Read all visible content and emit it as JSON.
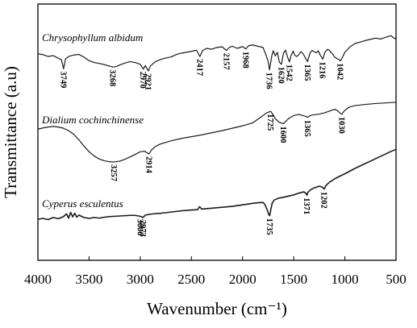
{
  "chart_data": {
    "type": "line",
    "xlabel": "Wavenumber (cm⁻¹)",
    "ylabel": "Transmittance (a.u)",
    "xlim": [
      4000,
      500
    ],
    "x_reversed": true,
    "x_ticks": [
      4000,
      3500,
      3000,
      2500,
      2000,
      1500,
      1000,
      500
    ],
    "y_ticks": [],
    "grid": false,
    "legend": "none",
    "line_color": "#1a1a1a",
    "series": [
      {
        "name": "Chrysophyllum albidum",
        "points": [
          [
            4000,
            83.5
          ],
          [
            3950,
            83.2
          ],
          [
            3900,
            82.6
          ],
          [
            3850,
            82.9
          ],
          [
            3800,
            82.0
          ],
          [
            3770,
            81.5
          ],
          [
            3749,
            78.5
          ],
          [
            3730,
            81.8
          ],
          [
            3700,
            82.6
          ],
          [
            3650,
            83.1
          ],
          [
            3600,
            83.3
          ],
          [
            3550,
            82.4
          ],
          [
            3500,
            81.2
          ],
          [
            3450,
            80.6
          ],
          [
            3400,
            80.3
          ],
          [
            3350,
            79.9
          ],
          [
            3300,
            79.4
          ],
          [
            3268,
            79.1
          ],
          [
            3230,
            79.3
          ],
          [
            3200,
            79.8
          ],
          [
            3150,
            80.4
          ],
          [
            3100,
            80.9
          ],
          [
            3050,
            80.6
          ],
          [
            3000,
            80.0
          ],
          [
            2970,
            78.4
          ],
          [
            2950,
            79.6
          ],
          [
            2921,
            77.8
          ],
          [
            2900,
            79.5
          ],
          [
            2850,
            80.9
          ],
          [
            2800,
            81.6
          ],
          [
            2750,
            82.1
          ],
          [
            2700,
            82.4
          ],
          [
            2650,
            83.2
          ],
          [
            2600,
            83.7
          ],
          [
            2550,
            84.0
          ],
          [
            2500,
            84.3
          ],
          [
            2450,
            84.7
          ],
          [
            2417,
            82.6
          ],
          [
            2390,
            84.6
          ],
          [
            2350,
            85.3
          ],
          [
            2300,
            85.0
          ],
          [
            2250,
            85.6
          ],
          [
            2200,
            85.8
          ],
          [
            2157,
            84.6
          ],
          [
            2130,
            85.6
          ],
          [
            2100,
            86.0
          ],
          [
            2050,
            85.3
          ],
          [
            2000,
            85.9
          ],
          [
            1968,
            85.1
          ],
          [
            1940,
            86.2
          ],
          [
            1900,
            86.4
          ],
          [
            1850,
            86.0
          ],
          [
            1800,
            85.6
          ],
          [
            1770,
            83.0
          ],
          [
            1750,
            81.0
          ],
          [
            1736,
            78.2
          ],
          [
            1715,
            82.7
          ],
          [
            1700,
            84.5
          ],
          [
            1680,
            82.8
          ],
          [
            1660,
            84.0
          ],
          [
            1640,
            80.7
          ],
          [
            1620,
            80.0
          ],
          [
            1600,
            83.7
          ],
          [
            1580,
            84.7
          ],
          [
            1560,
            82.4
          ],
          [
            1542,
            80.8
          ],
          [
            1525,
            83.0
          ],
          [
            1505,
            84.4
          ],
          [
            1490,
            83.0
          ],
          [
            1470,
            82.6
          ],
          [
            1450,
            83.2
          ],
          [
            1430,
            84.2
          ],
          [
            1410,
            83.6
          ],
          [
            1390,
            82.4
          ],
          [
            1365,
            80.9
          ],
          [
            1340,
            83.8
          ],
          [
            1320,
            84.6
          ],
          [
            1300,
            84.2
          ],
          [
            1280,
            83.8
          ],
          [
            1260,
            84.5
          ],
          [
            1240,
            83.0
          ],
          [
            1216,
            81.7
          ],
          [
            1195,
            84.0
          ],
          [
            1170,
            85.0
          ],
          [
            1150,
            84.6
          ],
          [
            1120,
            83.4
          ],
          [
            1100,
            82.4
          ],
          [
            1080,
            82.0
          ],
          [
            1060,
            81.6
          ],
          [
            1042,
            81.2
          ],
          [
            1020,
            82.6
          ],
          [
            1000,
            84.0
          ],
          [
            950,
            85.8
          ],
          [
            900,
            86.9
          ],
          [
            850,
            87.4
          ],
          [
            800,
            87.9
          ],
          [
            750,
            88.3
          ],
          [
            700,
            88.7
          ],
          [
            650,
            88.4
          ],
          [
            600,
            89.0
          ],
          [
            550,
            89.5
          ],
          [
            520,
            88.7
          ],
          [
            500,
            88.3
          ]
        ]
      },
      {
        "name": "Dialium cochinchinense",
        "points": [
          [
            4000,
            58.5
          ],
          [
            3950,
            58.9
          ],
          [
            3900,
            59.2
          ],
          [
            3850,
            59.4
          ],
          [
            3800,
            59.2
          ],
          [
            3750,
            58.8
          ],
          [
            3700,
            58.0
          ],
          [
            3650,
            56.8
          ],
          [
            3600,
            55.0
          ],
          [
            3550,
            52.9
          ],
          [
            3500,
            51.0
          ],
          [
            3450,
            49.6
          ],
          [
            3400,
            48.6
          ],
          [
            3350,
            48.0
          ],
          [
            3300,
            47.7
          ],
          [
            3257,
            47.6
          ],
          [
            3200,
            47.9
          ],
          [
            3150,
            48.5
          ],
          [
            3100,
            49.3
          ],
          [
            3050,
            50.1
          ],
          [
            3000,
            51.0
          ],
          [
            2960,
            51.2
          ],
          [
            2930,
            50.6
          ],
          [
            2914,
            50.3
          ],
          [
            2890,
            51.6
          ],
          [
            2850,
            52.8
          ],
          [
            2800,
            53.6
          ],
          [
            2700,
            54.6
          ],
          [
            2600,
            55.4
          ],
          [
            2500,
            56.0
          ],
          [
            2400,
            56.6
          ],
          [
            2300,
            57.3
          ],
          [
            2200,
            58.0
          ],
          [
            2100,
            58.8
          ],
          [
            2000,
            59.6
          ],
          [
            1900,
            60.6
          ],
          [
            1850,
            61.8
          ],
          [
            1800,
            63.0
          ],
          [
            1770,
            63.8
          ],
          [
            1750,
            64.1
          ],
          [
            1725,
            64.4
          ],
          [
            1700,
            63.2
          ],
          [
            1680,
            62.0
          ],
          [
            1650,
            61.0
          ],
          [
            1620,
            60.5
          ],
          [
            1600,
            60.3
          ],
          [
            1575,
            61.2
          ],
          [
            1550,
            62.0
          ],
          [
            1500,
            63.0
          ],
          [
            1450,
            63.4
          ],
          [
            1400,
            62.9
          ],
          [
            1380,
            62.7
          ],
          [
            1365,
            62.4
          ],
          [
            1340,
            63.0
          ],
          [
            1300,
            63.3
          ],
          [
            1250,
            63.5
          ],
          [
            1200,
            63.9
          ],
          [
            1150,
            64.5
          ],
          [
            1100,
            65.1
          ],
          [
            1070,
            64.6
          ],
          [
            1050,
            63.9
          ],
          [
            1030,
            63.4
          ],
          [
            1010,
            64.4
          ],
          [
            980,
            65.3
          ],
          [
            950,
            65.9
          ],
          [
            900,
            66.3
          ],
          [
            800,
            66.7
          ],
          [
            700,
            67.0
          ],
          [
            600,
            67.2
          ],
          [
            500,
            67.4
          ]
        ]
      },
      {
        "name": "Cyperus esculentus",
        "points": [
          [
            4000,
            28.6
          ],
          [
            3950,
            28.9
          ],
          [
            3900,
            28.5
          ],
          [
            3850,
            29.2
          ],
          [
            3800,
            28.8
          ],
          [
            3750,
            29.5
          ],
          [
            3720,
            30.4
          ],
          [
            3700,
            29.0
          ],
          [
            3680,
            30.9
          ],
          [
            3660,
            29.4
          ],
          [
            3640,
            30.6
          ],
          [
            3620,
            29.3
          ],
          [
            3600,
            30.0
          ],
          [
            3550,
            29.2
          ],
          [
            3500,
            28.9
          ],
          [
            3450,
            29.2
          ],
          [
            3400,
            29.0
          ],
          [
            3350,
            29.3
          ],
          [
            3300,
            29.5
          ],
          [
            3250,
            29.6
          ],
          [
            3200,
            29.7
          ],
          [
            3150,
            29.8
          ],
          [
            3100,
            29.9
          ],
          [
            3050,
            29.9
          ],
          [
            3000,
            29.6
          ],
          [
            2973,
            29.2
          ],
          [
            2950,
            30.0
          ],
          [
            2900,
            30.3
          ],
          [
            2850,
            30.5
          ],
          [
            2800,
            30.6
          ],
          [
            2700,
            31.0
          ],
          [
            2600,
            31.4
          ],
          [
            2500,
            31.7
          ],
          [
            2440,
            31.8
          ],
          [
            2420,
            32.8
          ],
          [
            2400,
            32.0
          ],
          [
            2300,
            32.3
          ],
          [
            2200,
            32.6
          ],
          [
            2100,
            32.9
          ],
          [
            2000,
            33.4
          ],
          [
            1900,
            33.9
          ],
          [
            1850,
            34.1
          ],
          [
            1800,
            34.2
          ],
          [
            1780,
            33.4
          ],
          [
            1760,
            31.8
          ],
          [
            1745,
            30.3
          ],
          [
            1735,
            29.8
          ],
          [
            1725,
            31.6
          ],
          [
            1710,
            34.0
          ],
          [
            1690,
            35.0
          ],
          [
            1650,
            35.6
          ],
          [
            1600,
            35.9
          ],
          [
            1550,
            36.3
          ],
          [
            1500,
            36.7
          ],
          [
            1450,
            37.3
          ],
          [
            1400,
            37.7
          ],
          [
            1380,
            37.2
          ],
          [
            1371,
            36.6
          ],
          [
            1360,
            37.6
          ],
          [
            1330,
            38.5
          ],
          [
            1300,
            39.0
          ],
          [
            1250,
            39.6
          ],
          [
            1220,
            39.3
          ],
          [
            1202,
            38.6
          ],
          [
            1185,
            39.8
          ],
          [
            1150,
            40.9
          ],
          [
            1100,
            42.0
          ],
          [
            1050,
            42.9
          ],
          [
            1000,
            43.7
          ],
          [
            950,
            44.6
          ],
          [
            900,
            45.5
          ],
          [
            850,
            46.3
          ],
          [
            800,
            47.1
          ],
          [
            750,
            47.9
          ],
          [
            700,
            48.7
          ],
          [
            650,
            49.5
          ],
          [
            600,
            50.3
          ],
          [
            550,
            51.1
          ],
          [
            500,
            51.8
          ]
        ]
      }
    ],
    "peak_labels": [
      {
        "text": "3749",
        "series": 0,
        "x": 3749,
        "y": 78.5
      },
      {
        "text": "3268",
        "series": 0,
        "x": 3268,
        "y": 79.1
      },
      {
        "text": "2970",
        "series": 0,
        "x": 2970,
        "y": 78.4
      },
      {
        "text": "2921",
        "series": 0,
        "x": 2921,
        "y": 77.8
      },
      {
        "text": "2417",
        "series": 0,
        "x": 2417,
        "y": 82.6
      },
      {
        "text": "2157",
        "series": 0,
        "x": 2157,
        "y": 84.6
      },
      {
        "text": "1968",
        "series": 0,
        "x": 1968,
        "y": 85.1
      },
      {
        "text": "1736",
        "series": 0,
        "x": 1736,
        "y": 78.2
      },
      {
        "text": "1620",
        "series": 0,
        "x": 1620,
        "y": 80.0
      },
      {
        "text": "1542",
        "series": 0,
        "x": 1542,
        "y": 80.8
      },
      {
        "text": "1365",
        "series": 0,
        "x": 1365,
        "y": 80.9
      },
      {
        "text": "1216",
        "series": 0,
        "x": 1216,
        "y": 81.7
      },
      {
        "text": "1042",
        "series": 0,
        "x": 1042,
        "y": 81.2
      },
      {
        "text": "1725",
        "series": 1,
        "x": 1725,
        "y": 64.4
      },
      {
        "text": "1600",
        "series": 1,
        "x": 1600,
        "y": 60.3
      },
      {
        "text": "1365",
        "series": 1,
        "x": 1365,
        "y": 62.4
      },
      {
        "text": "1030",
        "series": 1,
        "x": 1030,
        "y": 63.4
      },
      {
        "text": "3257",
        "series": 1,
        "x": 3257,
        "y": 47.6
      },
      {
        "text": "2914",
        "series": 1,
        "x": 2914,
        "y": 50.3
      },
      {
        "text": "3000",
        "series": 2,
        "x": 3000,
        "y": 29.6
      },
      {
        "text": "2973",
        "series": 2,
        "x": 2973,
        "y": 29.2
      },
      {
        "text": "1735",
        "series": 2,
        "x": 1735,
        "y": 29.8
      },
      {
        "text": "1371",
        "series": 2,
        "x": 1371,
        "y": 36.6
      },
      {
        "text": "1202",
        "series": 2,
        "x": 1202,
        "y": 38.6
      }
    ]
  }
}
